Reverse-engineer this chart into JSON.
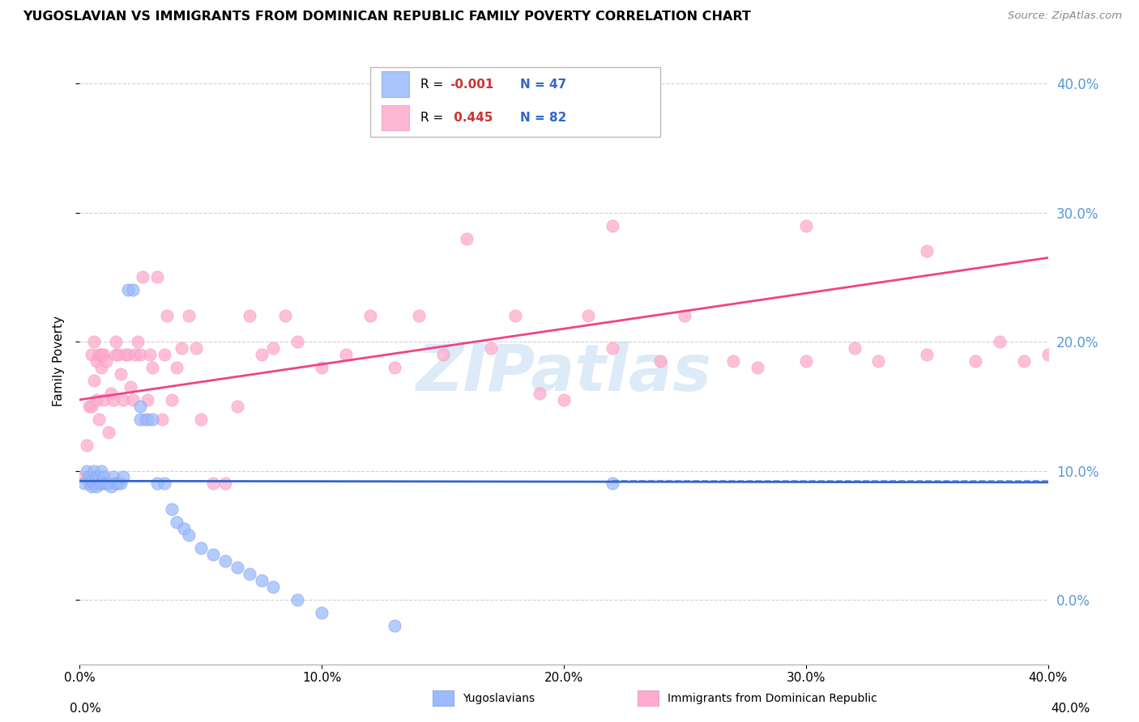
{
  "title": "YUGOSLAVIAN VS IMMIGRANTS FROM DOMINICAN REPUBLIC FAMILY POVERTY CORRELATION CHART",
  "source": "Source: ZipAtlas.com",
  "ylabel": "Family Poverty",
  "legend_label_1": "Yugoslavians",
  "legend_label_2": "Immigrants from Dominican Republic",
  "R1": -0.001,
  "N1": 47,
  "R2": 0.445,
  "N2": 82,
  "xlim": [
    0.0,
    0.4
  ],
  "ylim": [
    -0.05,
    0.42
  ],
  "yticks": [
    0.0,
    0.1,
    0.2,
    0.3,
    0.4
  ],
  "xticks": [
    0.0,
    0.1,
    0.2,
    0.3,
    0.4
  ],
  "background_color": "#ffffff",
  "plot_background": "#ffffff",
  "grid_color": "#cccccc",
  "color_blue": "#99bbff",
  "color_pink": "#ffaacc",
  "line_color_blue": "#3366cc",
  "line_color_pink": "#ee4488",
  "watermark": "ZIPatlas",
  "watermark_color": "#aaccee",
  "right_tick_color": "#5599dd",
  "note_R_color": "#cc3333",
  "note_N_color": "#3366cc",
  "blue_x": [
    0.002,
    0.003,
    0.004,
    0.004,
    0.005,
    0.005,
    0.006,
    0.006,
    0.007,
    0.007,
    0.008,
    0.008,
    0.009,
    0.009,
    0.01,
    0.01,
    0.011,
    0.012,
    0.013,
    0.014,
    0.015,
    0.016,
    0.017,
    0.018,
    0.02,
    0.022,
    0.025,
    0.025,
    0.028,
    0.03,
    0.032,
    0.035,
    0.038,
    0.04,
    0.043,
    0.045,
    0.05,
    0.055,
    0.06,
    0.065,
    0.07,
    0.075,
    0.08,
    0.09,
    0.1,
    0.13,
    0.22
  ],
  "blue_y": [
    0.09,
    0.1,
    0.09,
    0.095,
    0.088,
    0.092,
    0.09,
    0.1,
    0.088,
    0.095,
    0.09,
    0.095,
    0.09,
    0.1,
    0.09,
    0.095,
    0.09,
    0.09,
    0.088,
    0.095,
    0.09,
    0.09,
    0.09,
    0.095,
    0.24,
    0.24,
    0.14,
    0.15,
    0.14,
    0.14,
    0.09,
    0.09,
    0.07,
    0.06,
    0.055,
    0.05,
    0.04,
    0.035,
    0.03,
    0.025,
    0.02,
    0.015,
    0.01,
    0.0,
    -0.01,
    -0.02,
    0.09
  ],
  "pink_x": [
    0.002,
    0.003,
    0.004,
    0.005,
    0.005,
    0.006,
    0.006,
    0.007,
    0.007,
    0.008,
    0.008,
    0.009,
    0.009,
    0.01,
    0.01,
    0.011,
    0.012,
    0.013,
    0.014,
    0.015,
    0.015,
    0.016,
    0.017,
    0.018,
    0.019,
    0.02,
    0.021,
    0.022,
    0.023,
    0.024,
    0.025,
    0.026,
    0.027,
    0.028,
    0.029,
    0.03,
    0.032,
    0.034,
    0.035,
    0.036,
    0.038,
    0.04,
    0.042,
    0.045,
    0.048,
    0.05,
    0.055,
    0.06,
    0.065,
    0.07,
    0.075,
    0.08,
    0.085,
    0.09,
    0.1,
    0.11,
    0.12,
    0.13,
    0.14,
    0.15,
    0.16,
    0.17,
    0.18,
    0.19,
    0.2,
    0.21,
    0.22,
    0.24,
    0.25,
    0.27,
    0.28,
    0.3,
    0.32,
    0.33,
    0.35,
    0.35,
    0.37,
    0.38,
    0.39,
    0.4,
    0.22,
    0.3
  ],
  "pink_y": [
    0.095,
    0.12,
    0.15,
    0.19,
    0.15,
    0.2,
    0.17,
    0.185,
    0.155,
    0.19,
    0.14,
    0.18,
    0.19,
    0.155,
    0.19,
    0.185,
    0.13,
    0.16,
    0.155,
    0.19,
    0.2,
    0.19,
    0.175,
    0.155,
    0.19,
    0.19,
    0.165,
    0.155,
    0.19,
    0.2,
    0.19,
    0.25,
    0.14,
    0.155,
    0.19,
    0.18,
    0.25,
    0.14,
    0.19,
    0.22,
    0.155,
    0.18,
    0.195,
    0.22,
    0.195,
    0.14,
    0.09,
    0.09,
    0.15,
    0.22,
    0.19,
    0.195,
    0.22,
    0.2,
    0.18,
    0.19,
    0.22,
    0.18,
    0.22,
    0.19,
    0.28,
    0.195,
    0.22,
    0.16,
    0.155,
    0.22,
    0.195,
    0.185,
    0.22,
    0.185,
    0.18,
    0.185,
    0.195,
    0.185,
    0.27,
    0.19,
    0.185,
    0.2,
    0.185,
    0.19,
    0.29,
    0.29
  ],
  "pink_line_x0": 0.0,
  "pink_line_x1": 0.4,
  "pink_line_y0": 0.155,
  "pink_line_y1": 0.265,
  "blue_line_x0": 0.0,
  "blue_line_x1": 0.4,
  "blue_line_y0": 0.092,
  "blue_line_y1": 0.091,
  "dashed_line_y": 0.092,
  "dashed_line_xstart": 0.55
}
